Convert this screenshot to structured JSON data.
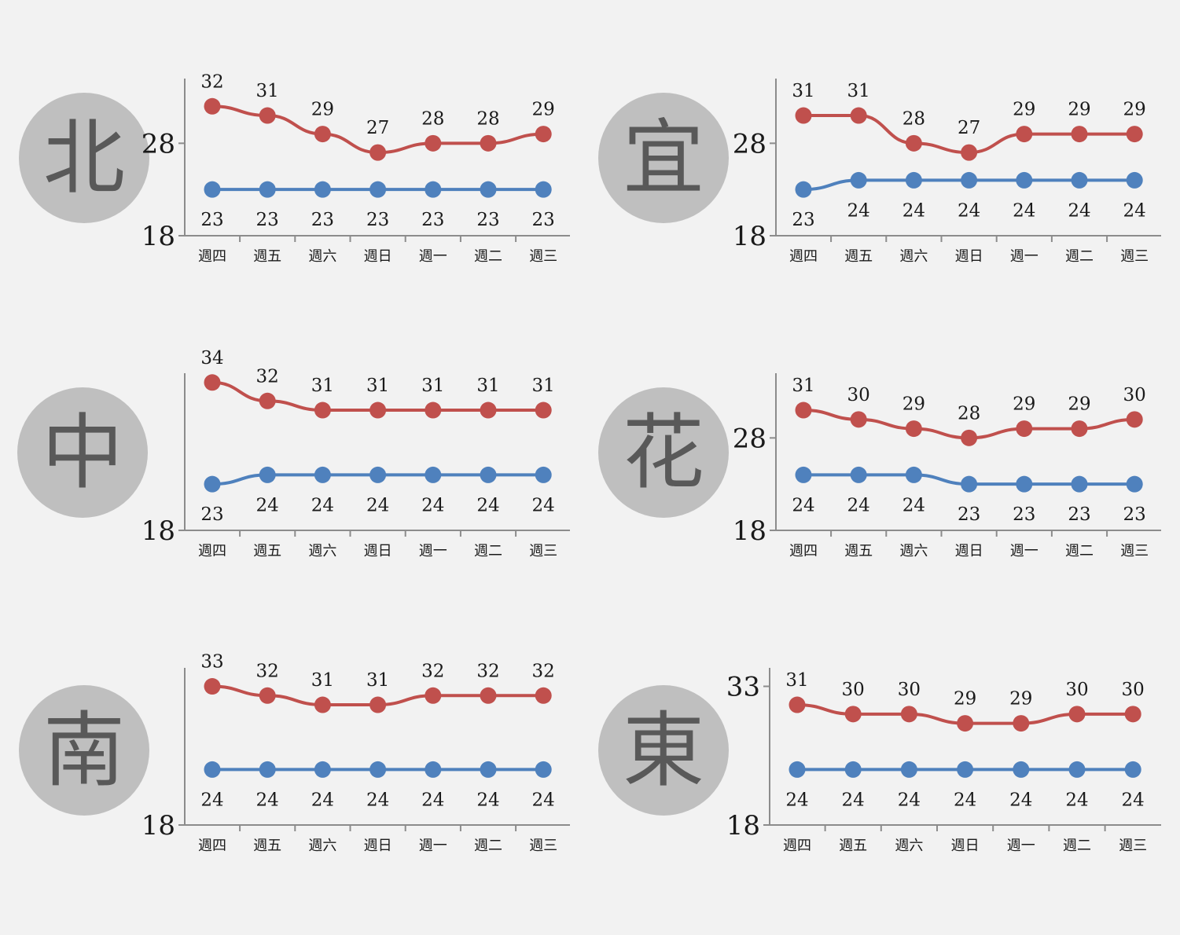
{
  "colors": {
    "high": "#c0504d",
    "low": "#4f81bd",
    "axis": "#8c8c8c",
    "badge": "#bfbfbf",
    "badge_text": "#595959"
  },
  "chart_data": [
    {
      "type": "line",
      "region": "北",
      "categories": [
        "週四",
        "週五",
        "週六",
        "週日",
        "週一",
        "週二",
        "週三"
      ],
      "yticks": [
        18,
        28
      ],
      "ylim": [
        18,
        35
      ],
      "series": [
        {
          "key": "high",
          "values": [
            32,
            31,
            29,
            27,
            28,
            28,
            29
          ]
        },
        {
          "key": "low",
          "values": [
            23,
            23,
            23,
            23,
            23,
            23,
            23
          ]
        }
      ]
    },
    {
      "type": "line",
      "region": "宜",
      "categories": [
        "週四",
        "週五",
        "週六",
        "週日",
        "週一",
        "週二",
        "週三"
      ],
      "yticks": [
        18,
        28
      ],
      "ylim": [
        18,
        35
      ],
      "series": [
        {
          "key": "high",
          "values": [
            31,
            31,
            28,
            27,
            29,
            29,
            29
          ]
        },
        {
          "key": "low",
          "values": [
            23,
            24,
            24,
            24,
            24,
            24,
            24
          ]
        }
      ]
    },
    {
      "type": "line",
      "region": "中",
      "categories": [
        "週四",
        "週五",
        "週六",
        "週日",
        "週一",
        "週二",
        "週三"
      ],
      "yticks": [
        18
      ],
      "ylim": [
        18,
        35
      ],
      "series": [
        {
          "key": "high",
          "values": [
            34,
            32,
            31,
            31,
            31,
            31,
            31
          ]
        },
        {
          "key": "low",
          "values": [
            23,
            24,
            24,
            24,
            24,
            24,
            24
          ]
        }
      ]
    },
    {
      "type": "line",
      "region": "花",
      "categories": [
        "週四",
        "週五",
        "週六",
        "週日",
        "週一",
        "週二",
        "週三"
      ],
      "yticks": [
        18,
        28
      ],
      "ylim": [
        18,
        35
      ],
      "series": [
        {
          "key": "high",
          "values": [
            31,
            30,
            29,
            28,
            29,
            29,
            30
          ]
        },
        {
          "key": "low",
          "values": [
            24,
            24,
            24,
            23,
            23,
            23,
            23
          ]
        }
      ]
    },
    {
      "type": "line",
      "region": "南",
      "categories": [
        "週四",
        "週五",
        "週六",
        "週日",
        "週一",
        "週二",
        "週三"
      ],
      "yticks": [
        18
      ],
      "ylim": [
        18,
        35
      ],
      "series": [
        {
          "key": "high",
          "values": [
            33,
            32,
            31,
            31,
            32,
            32,
            32
          ]
        },
        {
          "key": "low",
          "values": [
            24,
            24,
            24,
            24,
            24,
            24,
            24
          ]
        }
      ]
    },
    {
      "type": "line",
      "region": "東",
      "categories": [
        "週四",
        "週五",
        "週六",
        "週日",
        "週一",
        "週二",
        "週三"
      ],
      "yticks": [
        18,
        33
      ],
      "ylim": [
        18,
        35
      ],
      "series": [
        {
          "key": "high",
          "values": [
            31,
            30,
            30,
            29,
            29,
            30,
            30
          ]
        },
        {
          "key": "low",
          "values": [
            24,
            24,
            24,
            24,
            24,
            24,
            24
          ]
        }
      ]
    }
  ]
}
